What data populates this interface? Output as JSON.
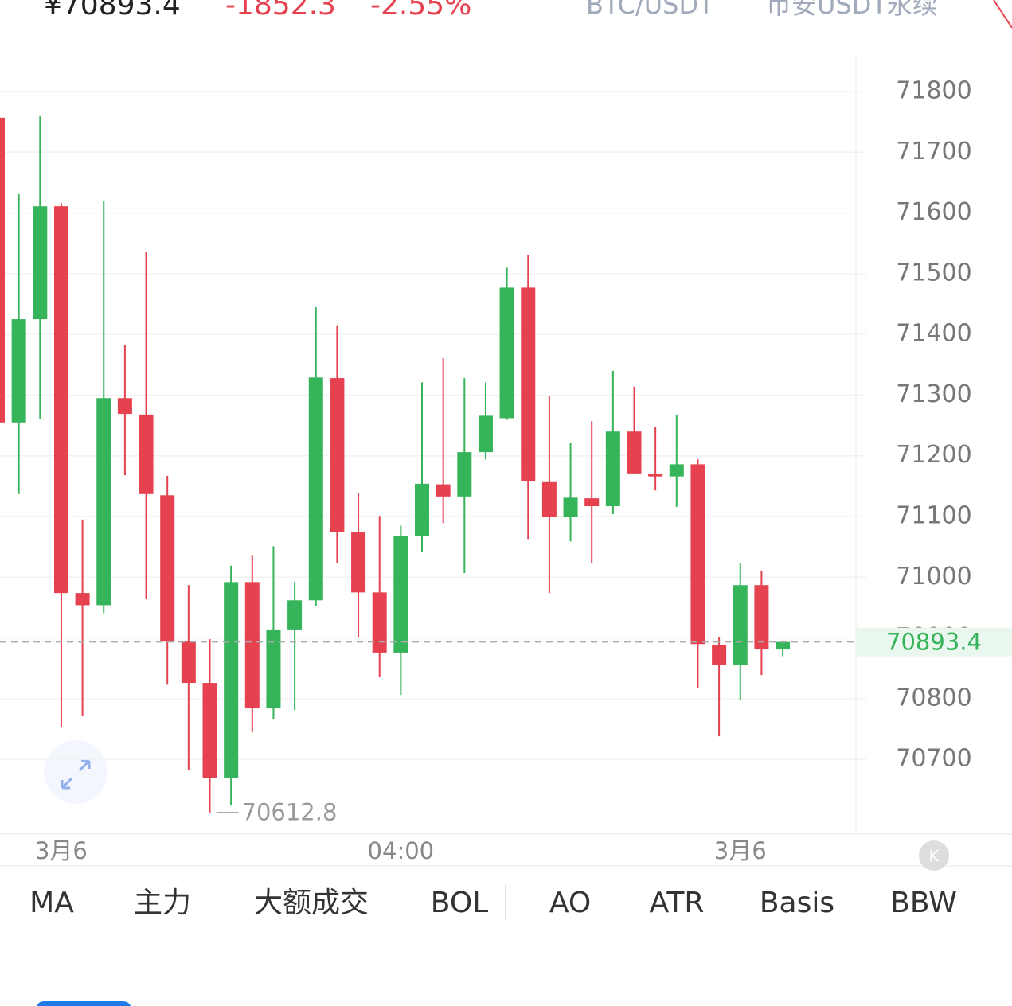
{
  "header": {
    "price": "¥70893.4",
    "change": "-1852.3",
    "change_pct": "-2.55%",
    "symbol": "BTC/USDT",
    "market": "币安USDT永续"
  },
  "chart_data": {
    "type": "candlestick",
    "categories": [
      null,
      null,
      null,
      "3月6",
      null,
      null,
      null,
      null,
      null,
      null,
      null,
      null,
      null,
      null,
      null,
      null,
      null,
      null,
      null,
      "04:00",
      null,
      null,
      null,
      null,
      null,
      null,
      null,
      null,
      null,
      null,
      null,
      null,
      null,
      null,
      null,
      "3月6",
      null,
      null
    ],
    "series": [
      {
        "up_color": "#35b45a",
        "down_color": "#e5414f",
        "open": [
          71757,
          71255,
          71425,
          71611,
          70974,
          70954,
          71295,
          71268,
          71135,
          70894,
          70826,
          70670,
          70992,
          70784,
          70914,
          70962,
          71328,
          71074,
          70975,
          70876,
          71068,
          71153,
          71133,
          71206,
          71262,
          71477,
          71158,
          71100,
          71130,
          71117,
          71240,
          71170,
          71166,
          71186,
          70889,
          70855,
          70987,
          70881
        ],
        "high": [
          71757,
          71631,
          71759,
          71616,
          71095,
          71620,
          71382,
          71536,
          71167,
          70987,
          70898,
          71019,
          71037,
          71051,
          70992,
          71445,
          71415,
          71138,
          71101,
          71085,
          71321,
          71361,
          71328,
          71321,
          71510,
          71530,
          71299,
          71222,
          71257,
          71340,
          71314,
          71247,
          71268,
          71194,
          70902,
          71024,
          71011,
          70896
        ],
        "low": [
          71250,
          71137,
          71260,
          70754,
          70772,
          70941,
          71168,
          70965,
          70823,
          70683,
          70612.8,
          70624,
          70745,
          70766,
          70781,
          70953,
          71023,
          70902,
          70836,
          70806,
          71042,
          71089,
          71007,
          71194,
          71259,
          71063,
          70974,
          71059,
          71023,
          71104,
          71171,
          71143,
          71116,
          70818,
          70738,
          70798,
          70839,
          70870
        ],
        "close": [
          71255,
          71425,
          71611,
          70974,
          70954,
          71295,
          71269,
          71137,
          70894,
          70826,
          70670,
          70992,
          70784,
          70914,
          70962,
          71329,
          71074,
          70975,
          70876,
          71068,
          71154,
          71133,
          71206,
          71266,
          71477,
          71159,
          71100,
          71131,
          71117,
          71240,
          71171,
          71166,
          71186,
          70890,
          70855,
          70987,
          70881,
          70893.4
        ]
      }
    ],
    "ylim": [
      70577,
      71859
    ],
    "yticks": [
      70700,
      70800,
      70900,
      71000,
      71100,
      71200,
      71300,
      71400,
      71500,
      71600,
      71700,
      71800
    ],
    "grid": true
  },
  "indicators": [
    "MA",
    "主力",
    "大额成交",
    "BOL",
    "AO",
    "ATR",
    "Basis",
    "BBW"
  ]
}
